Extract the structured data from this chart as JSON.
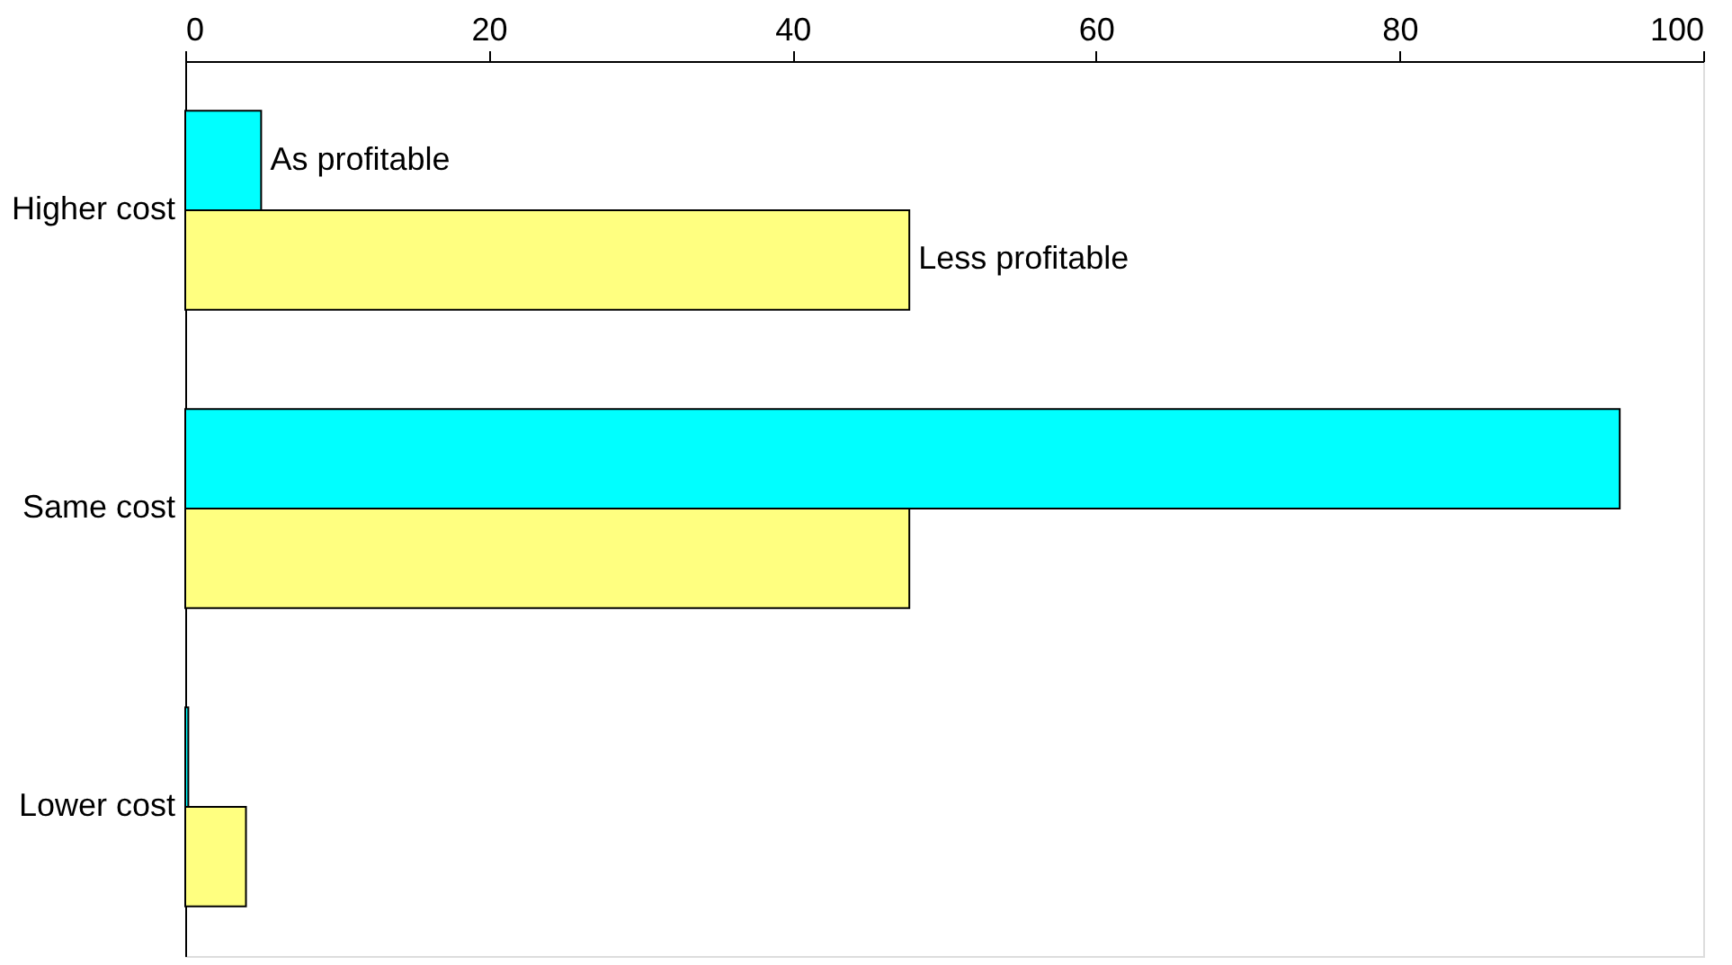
{
  "chart_data": {
    "type": "bar",
    "orientation": "horizontal",
    "categories": [
      "Higher cost",
      "Same cost",
      "Lower cost"
    ],
    "series": [
      {
        "name": "As profitable",
        "color": "#00ffff",
        "values": [
          5,
          94.5,
          0.2
        ]
      },
      {
        "name": "Less profitable",
        "color": "#ffff80",
        "values": [
          47.7,
          47.7,
          4
        ]
      }
    ],
    "xlim": [
      0,
      100
    ],
    "xticks": [
      0,
      20,
      40,
      60,
      80,
      100
    ],
    "grid": false
  }
}
